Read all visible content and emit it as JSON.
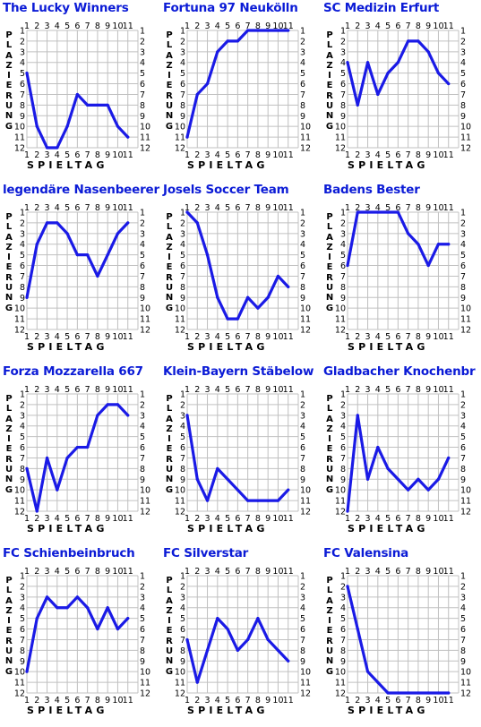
{
  "axis_text": {
    "y_label": "PLAZIERUNG",
    "x_label": "SPIELTAG"
  },
  "style": {
    "line_color": "#1a1ae6",
    "title_color": "#0b1bd6",
    "grid_color": "#c0c0c0"
  },
  "chart_data": [
    {
      "type": "line",
      "title": "The Lucky Winners",
      "xlabel": "SPIELTAG",
      "ylabel": "PLAZIERUNG",
      "x": [
        1,
        2,
        3,
        4,
        5,
        6,
        7,
        8,
        9,
        10,
        11
      ],
      "ylim": [
        1,
        12
      ],
      "y_inverted": true,
      "values": [
        5,
        10,
        12,
        12,
        10,
        7,
        8,
        8,
        8,
        10,
        11
      ]
    },
    {
      "type": "line",
      "title": "Fortuna 97 Neukölln",
      "xlabel": "SPIELTAG",
      "ylabel": "PLAZIERUNG",
      "x": [
        1,
        2,
        3,
        4,
        5,
        6,
        7,
        8,
        9,
        10,
        11
      ],
      "ylim": [
        1,
        12
      ],
      "y_inverted": true,
      "values": [
        11,
        7,
        6,
        3,
        2,
        2,
        1,
        1,
        1,
        1,
        1
      ]
    },
    {
      "type": "line",
      "title": "SC Medizin Erfurt",
      "xlabel": "SPIELTAG",
      "ylabel": "PLAZIERUNG",
      "x": [
        1,
        2,
        3,
        4,
        5,
        6,
        7,
        8,
        9,
        10,
        11
      ],
      "ylim": [
        1,
        12
      ],
      "y_inverted": true,
      "values": [
        4,
        8,
        4,
        7,
        5,
        4,
        2,
        2,
        3,
        5,
        6
      ]
    },
    {
      "type": "line",
      "title": "legendäre Nasenbeerer",
      "xlabel": "SPIELTAG",
      "ylabel": "PLAZIERUNG",
      "x": [
        1,
        2,
        3,
        4,
        5,
        6,
        7,
        8,
        9,
        10,
        11
      ],
      "ylim": [
        1,
        12
      ],
      "y_inverted": true,
      "values": [
        9,
        4,
        2,
        2,
        3,
        5,
        5,
        7,
        5,
        3,
        2
      ]
    },
    {
      "type": "line",
      "title": "Josels Soccer Team",
      "xlabel": "SPIELTAG",
      "ylabel": "PLAZIERUNG",
      "x": [
        1,
        2,
        3,
        4,
        5,
        6,
        7,
        8,
        9,
        10,
        11
      ],
      "ylim": [
        1,
        12
      ],
      "y_inverted": true,
      "values": [
        1,
        2,
        5,
        9,
        11,
        11,
        9,
        10,
        9,
        7,
        8
      ]
    },
    {
      "type": "line",
      "title": "Badens Bester",
      "xlabel": "SPIELTAG",
      "ylabel": "PLAZIERUNG",
      "x": [
        1,
        2,
        3,
        4,
        5,
        6,
        7,
        8,
        9,
        10,
        11
      ],
      "ylim": [
        1,
        12
      ],
      "y_inverted": true,
      "values": [
        6,
        1,
        1,
        1,
        1,
        1,
        3,
        4,
        6,
        4,
        4
      ]
    },
    {
      "type": "line",
      "title": "Forza Mozzarella 667",
      "xlabel": "SPIELTAG",
      "ylabel": "PLAZIERUNG",
      "x": [
        1,
        2,
        3,
        4,
        5,
        6,
        7,
        8,
        9,
        10,
        11
      ],
      "ylim": [
        1,
        12
      ],
      "y_inverted": true,
      "values": [
        8,
        12,
        7,
        10,
        7,
        6,
        6,
        3,
        2,
        2,
        3
      ]
    },
    {
      "type": "line",
      "title": "Klein-Bayern Stäbelow",
      "xlabel": "SPIELTAG",
      "ylabel": "PLAZIERUNG",
      "x": [
        1,
        2,
        3,
        4,
        5,
        6,
        7,
        8,
        9,
        10,
        11
      ],
      "ylim": [
        1,
        12
      ],
      "y_inverted": true,
      "values": [
        3,
        9,
        11,
        8,
        9,
        10,
        11,
        11,
        11,
        11,
        10
      ]
    },
    {
      "type": "line",
      "title": "Gladbacher Knochenbr",
      "xlabel": "SPIELTAG",
      "ylabel": "PLAZIERUNG",
      "x": [
        1,
        2,
        3,
        4,
        5,
        6,
        7,
        8,
        9,
        10,
        11
      ],
      "ylim": [
        1,
        12
      ],
      "y_inverted": true,
      "values": [
        12,
        3,
        9,
        6,
        8,
        9,
        10,
        9,
        10,
        9,
        7
      ]
    },
    {
      "type": "line",
      "title": "FC Schienbeinbruch",
      "xlabel": "SPIELTAG",
      "ylabel": "PLAZIERUNG",
      "x": [
        1,
        2,
        3,
        4,
        5,
        6,
        7,
        8,
        9,
        10,
        11
      ],
      "ylim": [
        1,
        12
      ],
      "y_inverted": true,
      "values": [
        10,
        5,
        3,
        4,
        4,
        3,
        4,
        6,
        4,
        6,
        5
      ]
    },
    {
      "type": "line",
      "title": "FC Silverstar",
      "xlabel": "SPIELTAG",
      "ylabel": "PLAZIERUNG",
      "x": [
        1,
        2,
        3,
        4,
        5,
        6,
        7,
        8,
        9,
        10,
        11
      ],
      "ylim": [
        1,
        12
      ],
      "y_inverted": true,
      "values": [
        7,
        11,
        8,
        5,
        6,
        8,
        7,
        5,
        7,
        8,
        9
      ]
    },
    {
      "type": "line",
      "title": "FC Valensina",
      "xlabel": "SPIELTAG",
      "ylabel": "PLAZIERUNG",
      "x": [
        1,
        2,
        3,
        4,
        5,
        6,
        7,
        8,
        9,
        10,
        11
      ],
      "ylim": [
        1,
        12
      ],
      "y_inverted": true,
      "values": [
        2,
        6,
        10,
        11,
        12,
        12,
        12,
        12,
        12,
        12,
        12
      ]
    }
  ]
}
